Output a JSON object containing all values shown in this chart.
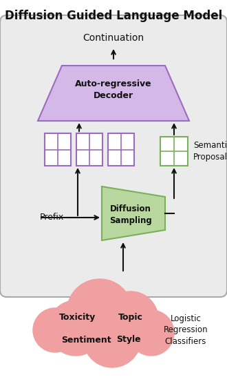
{
  "title": "Diffusion Guided Language Model",
  "title_fontsize": 12,
  "bg_box_color": "#ebebeb",
  "bg_box_edge": "#aaaaaa",
  "decoder_color": "#d4b8e8",
  "decoder_edge_color": "#9b6bbf",
  "diffusion_color": "#b8d8a0",
  "diffusion_edge_color": "#7ab05a",
  "prefix_boxes_color": "#d4b8e8",
  "prefix_boxes_edge_color": "#9b6bbf",
  "proposal_box_color": "#c8e8b0",
  "proposal_box_edge_color": "#7ab05a",
  "cloud_color": "#f0a0a0",
  "cloud_edge_color": "#cc6666",
  "arrow_color": "#111111",
  "text_color": "#111111",
  "continuation_text": "Continuation",
  "decoder_text": "Auto-regressive\nDecoder",
  "diffusion_text": "Diffusion\nSampling",
  "prefix_text": "Prefix",
  "semantic_text": "Semantic\nProposal",
  "logistic_text": "Logistic\nRegression\nClassifiers",
  "cloud_labels": [
    "Toxicity",
    "Topic",
    "Sentiment",
    "Style"
  ]
}
